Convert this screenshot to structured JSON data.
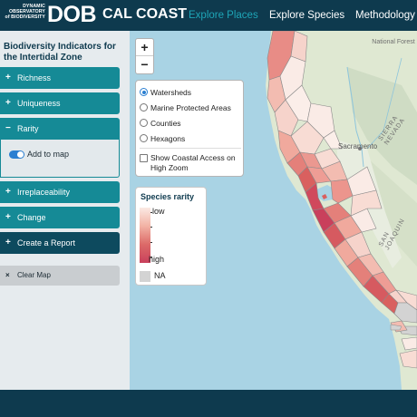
{
  "header": {
    "logo_small_lines": [
      "DYNAMIC",
      "OBSERVATORY",
      "of BIODIVERSITY"
    ],
    "logo_main": "DOB",
    "logo_sub": "CAL COAST",
    "nav": {
      "explore_places": "Explore Places",
      "explore_species": "Explore Species",
      "methodology": "Methodology"
    },
    "active_color": "#1ea5b7"
  },
  "sidebar": {
    "title": "Biodiversity Indicators for the Intertidal Zone",
    "items": [
      {
        "label": "Richness",
        "symbol": "+"
      },
      {
        "label": "Uniqueness",
        "symbol": "+"
      },
      {
        "label": "Rarity",
        "symbol": "−"
      },
      {
        "label": "Irreplaceability",
        "symbol": "+"
      },
      {
        "label": "Change",
        "symbol": "+"
      },
      {
        "label": "Create a Report",
        "symbol": "+"
      }
    ],
    "rarity_toggle_label": "Add to map",
    "rarity_toggle_on": true,
    "clear_map": "Clear Map",
    "clear_symbol": "×"
  },
  "map": {
    "zoom_in": "+",
    "zoom_out": "−",
    "layers": [
      {
        "label": "Watersheds",
        "selected": true
      },
      {
        "label": "Marine Protected Areas",
        "selected": false
      },
      {
        "label": "Counties",
        "selected": false
      },
      {
        "label": "Hexagons",
        "selected": false
      }
    ],
    "coastal_access_label": "Show Coastal Access on High Zoom",
    "coastal_access_checked": false,
    "labels": {
      "national_forest": "National Forest",
      "sierra_nevada": "SIERRA NEVADA",
      "sacramento": "Sacramento",
      "san_joaquin": "SAN JOAQUIN"
    },
    "legend": {
      "title": "Species rarity",
      "low": "low",
      "high": "high",
      "na": "NA"
    },
    "colors": {
      "ocean": "#a9d3e4",
      "land": "#dfe8d2",
      "high_rarity": "#c9405c",
      "low_rarity": "#fbeae4",
      "na": "#d3d3d3"
    }
  }
}
